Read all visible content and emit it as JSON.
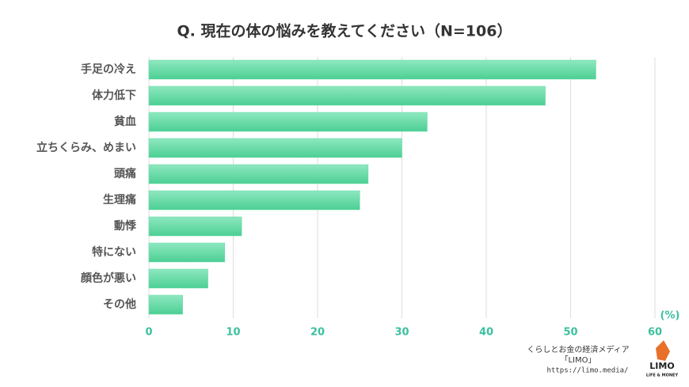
{
  "chart_data": {
    "type": "bar",
    "orientation": "horizontal",
    "title": "Q. 現在の体の悩みを教えてください（N=106）",
    "categories": [
      "手足の冷え",
      "体力低下",
      "貧血",
      "立ちくらみ、めまい",
      "頭痛",
      "生理痛",
      "動悸",
      "特にない",
      "顔色が悪い",
      "その他"
    ],
    "values": [
      53,
      47,
      33,
      30,
      26,
      25,
      11,
      9,
      7,
      4
    ],
    "color": "#5fd9a3",
    "xlim": [
      0,
      60
    ],
    "xticks": [
      0,
      10,
      20,
      30,
      40,
      50,
      60
    ],
    "grid": true,
    "unit_label": "(%)"
  },
  "footer": {
    "tagline": "くらしとお金の経済メディア",
    "brand": "「LIMO」",
    "url": "https://limo.media/",
    "logo": "LIMO",
    "logo_sub": "LIFE & MONEY"
  }
}
